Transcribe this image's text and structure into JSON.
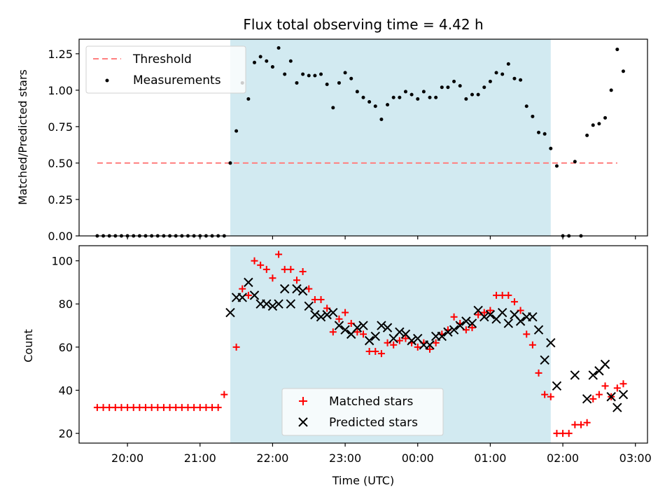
{
  "figure": {
    "title": "Flux total observing time = 4.42 h"
  },
  "colors": {
    "shade": "#add8e6",
    "threshold": "#ff7f7f",
    "measure": "#000000",
    "matched": "#ff0000",
    "predicted": "#000000"
  },
  "chart_data": [
    {
      "type": "scatter",
      "ylabel": "Matched/Predicted stars",
      "ylim": [
        0,
        1.35
      ],
      "yticks": [
        "0.00",
        "0.25",
        "0.50",
        "0.75",
        "1.00",
        "1.25"
      ],
      "xlim": [
        "19:20",
        "03:10"
      ],
      "grid": false,
      "legend": {
        "position": "upper-left",
        "entries": [
          "Threshold",
          "Measurements"
        ]
      },
      "shaded_interval": [
        "21:25",
        "01:50"
      ],
      "threshold": {
        "name": "Threshold",
        "value": 0.5,
        "x": [
          "19:35",
          "02:45"
        ]
      },
      "series": [
        {
          "name": "Measurements",
          "points": [
            [
              "19:35",
              0
            ],
            [
              "19:40",
              0
            ],
            [
              "19:45",
              0
            ],
            [
              "19:50",
              0
            ],
            [
              "19:55",
              0
            ],
            [
              "20:00",
              0
            ],
            [
              "20:05",
              0
            ],
            [
              "20:10",
              0
            ],
            [
              "20:15",
              0
            ],
            [
              "20:20",
              0
            ],
            [
              "20:25",
              0
            ],
            [
              "20:30",
              0
            ],
            [
              "20:35",
              0
            ],
            [
              "20:40",
              0
            ],
            [
              "20:45",
              0
            ],
            [
              "20:50",
              0
            ],
            [
              "20:55",
              0
            ],
            [
              "21:00",
              0
            ],
            [
              "21:05",
              0
            ],
            [
              "21:10",
              0
            ],
            [
              "21:15",
              0
            ],
            [
              "21:20",
              0
            ],
            [
              "21:25",
              0.5
            ],
            [
              "21:30",
              0.72
            ],
            [
              "21:35",
              1.05
            ],
            [
              "21:40",
              0.94
            ],
            [
              "21:45",
              1.19
            ],
            [
              "21:50",
              1.23
            ],
            [
              "21:55",
              1.2
            ],
            [
              "22:00",
              1.16
            ],
            [
              "22:05",
              1.29
            ],
            [
              "22:10",
              1.11
            ],
            [
              "22:15",
              1.2
            ],
            [
              "22:20",
              1.05
            ],
            [
              "22:25",
              1.11
            ],
            [
              "22:30",
              1.1
            ],
            [
              "22:35",
              1.1
            ],
            [
              "22:40",
              1.11
            ],
            [
              "22:45",
              1.04
            ],
            [
              "22:50",
              0.88
            ],
            [
              "22:55",
              1.05
            ],
            [
              "23:00",
              1.12
            ],
            [
              "23:05",
              1.08
            ],
            [
              "23:10",
              0.99
            ],
            [
              "23:15",
              0.95
            ],
            [
              "23:20",
              0.92
            ],
            [
              "23:25",
              0.89
            ],
            [
              "23:30",
              0.8
            ],
            [
              "23:35",
              0.9
            ],
            [
              "23:40",
              0.95
            ],
            [
              "23:45",
              0.95
            ],
            [
              "23:50",
              0.99
            ],
            [
              "23:55",
              0.97
            ],
            [
              "00:00",
              0.94
            ],
            [
              "00:05",
              0.99
            ],
            [
              "00:10",
              0.95
            ],
            [
              "00:15",
              0.95
            ],
            [
              "00:20",
              1.02
            ],
            [
              "00:25",
              1.02
            ],
            [
              "00:30",
              1.06
            ],
            [
              "00:35",
              1.03
            ],
            [
              "00:40",
              0.94
            ],
            [
              "00:45",
              0.97
            ],
            [
              "00:50",
              0.97
            ],
            [
              "00:55",
              1.02
            ],
            [
              "01:00",
              1.06
            ],
            [
              "01:05",
              1.12
            ],
            [
              "01:10",
              1.11
            ],
            [
              "01:15",
              1.18
            ],
            [
              "01:20",
              1.08
            ],
            [
              "01:25",
              1.07
            ],
            [
              "01:30",
              0.89
            ],
            [
              "01:35",
              0.82
            ],
            [
              "01:40",
              0.71
            ],
            [
              "01:45",
              0.7
            ],
            [
              "01:50",
              0.6
            ],
            [
              "01:55",
              0.48
            ],
            [
              "02:00",
              0
            ],
            [
              "02:05",
              0
            ],
            [
              "02:10",
              0.51
            ],
            [
              "02:15",
              0
            ],
            [
              "02:20",
              0.69
            ],
            [
              "02:25",
              0.76
            ],
            [
              "02:30",
              0.77
            ],
            [
              "02:35",
              0.81
            ],
            [
              "02:40",
              1.0
            ],
            [
              "02:45",
              1.28
            ],
            [
              "02:50",
              1.13
            ]
          ]
        }
      ]
    },
    {
      "type": "scatter",
      "xlabel": "Time (UTC)",
      "ylabel": "Count",
      "ylim": [
        15.5,
        107
      ],
      "yticks": [
        "20",
        "40",
        "60",
        "80",
        "100"
      ],
      "xlim": [
        "19:20",
        "03:10"
      ],
      "xticks": [
        "20:00",
        "21:00",
        "22:00",
        "23:00",
        "00:00",
        "01:00",
        "02:00",
        "03:00"
      ],
      "grid": false,
      "legend": {
        "position": "lower-center",
        "entries": [
          "Matched stars",
          "Predicted stars"
        ]
      },
      "shaded_interval": [
        "21:25",
        "01:50"
      ],
      "series": [
        {
          "name": "Matched stars",
          "marker": "plus",
          "points": [
            [
              "19:35",
              32
            ],
            [
              "19:40",
              32
            ],
            [
              "19:45",
              32
            ],
            [
              "19:50",
              32
            ],
            [
              "19:55",
              32
            ],
            [
              "20:00",
              32
            ],
            [
              "20:05",
              32
            ],
            [
              "20:10",
              32
            ],
            [
              "20:15",
              32
            ],
            [
              "20:20",
              32
            ],
            [
              "20:25",
              32
            ],
            [
              "20:30",
              32
            ],
            [
              "20:35",
              32
            ],
            [
              "20:40",
              32
            ],
            [
              "20:45",
              32
            ],
            [
              "20:50",
              32
            ],
            [
              "20:55",
              32
            ],
            [
              "21:00",
              32
            ],
            [
              "21:05",
              32
            ],
            [
              "21:10",
              32
            ],
            [
              "21:15",
              32
            ],
            [
              "21:20",
              38
            ],
            [
              "21:30",
              60
            ],
            [
              "21:35",
              87
            ],
            [
              "21:40",
              84
            ],
            [
              "21:45",
              100
            ],
            [
              "21:50",
              98
            ],
            [
              "21:55",
              96
            ],
            [
              "22:00",
              92
            ],
            [
              "22:05",
              103
            ],
            [
              "22:10",
              96
            ],
            [
              "22:15",
              96
            ],
            [
              "22:20",
              91
            ],
            [
              "22:25",
              95
            ],
            [
              "22:30",
              87
            ],
            [
              "22:35",
              82
            ],
            [
              "22:40",
              82
            ],
            [
              "22:45",
              78
            ],
            [
              "22:50",
              67
            ],
            [
              "22:55",
              73
            ],
            [
              "23:00",
              76
            ],
            [
              "23:05",
              71
            ],
            [
              "23:10",
              67
            ],
            [
              "23:15",
              66
            ],
            [
              "23:20",
              58
            ],
            [
              "23:25",
              58
            ],
            [
              "23:30",
              57
            ],
            [
              "23:35",
              62
            ],
            [
              "23:40",
              61
            ],
            [
              "23:45",
              63
            ],
            [
              "23:50",
              64
            ],
            [
              "23:55",
              62
            ],
            [
              "00:00",
              60
            ],
            [
              "00:05",
              62
            ],
            [
              "00:10",
              59
            ],
            [
              "00:15",
              62
            ],
            [
              "00:20",
              66
            ],
            [
              "00:25",
              68
            ],
            [
              "00:30",
              74
            ],
            [
              "00:35",
              71
            ],
            [
              "00:40",
              68
            ],
            [
              "00:45",
              69
            ],
            [
              "00:50",
              75
            ],
            [
              "00:55",
              76
            ],
            [
              "01:00",
              77
            ],
            [
              "01:05",
              84
            ],
            [
              "01:10",
              84
            ],
            [
              "01:15",
              84
            ],
            [
              "01:20",
              81
            ],
            [
              "01:25",
              77
            ],
            [
              "01:30",
              66
            ],
            [
              "01:35",
              61
            ],
            [
              "01:40",
              48
            ],
            [
              "01:45",
              38
            ],
            [
              "01:50",
              37
            ],
            [
              "01:55",
              20
            ],
            [
              "02:00",
              20
            ],
            [
              "02:05",
              20
            ],
            [
              "02:10",
              24
            ],
            [
              "02:15",
              24
            ],
            [
              "02:20",
              25
            ],
            [
              "02:25",
              36
            ],
            [
              "02:30",
              38
            ],
            [
              "02:35",
              42
            ],
            [
              "02:40",
              37
            ],
            [
              "02:45",
              41
            ],
            [
              "02:50",
              43
            ]
          ]
        },
        {
          "name": "Predicted stars",
          "marker": "x",
          "points": [
            [
              "21:25",
              76
            ],
            [
              "21:30",
              83
            ],
            [
              "21:35",
              83
            ],
            [
              "21:40",
              90
            ],
            [
              "21:45",
              84
            ],
            [
              "21:50",
              80
            ],
            [
              "21:55",
              80
            ],
            [
              "22:00",
              79
            ],
            [
              "22:05",
              80
            ],
            [
              "22:10",
              87
            ],
            [
              "22:15",
              80
            ],
            [
              "22:20",
              87
            ],
            [
              "22:25",
              86
            ],
            [
              "22:30",
              79
            ],
            [
              "22:35",
              75
            ],
            [
              "22:40",
              74
            ],
            [
              "22:45",
              75
            ],
            [
              "22:50",
              76
            ],
            [
              "22:55",
              70
            ],
            [
              "23:00",
              68
            ],
            [
              "23:05",
              66
            ],
            [
              "23:10",
              69
            ],
            [
              "23:15",
              70
            ],
            [
              "23:20",
              63
            ],
            [
              "23:25",
              65
            ],
            [
              "23:30",
              70
            ],
            [
              "23:35",
              69
            ],
            [
              "23:40",
              64
            ],
            [
              "23:45",
              67
            ],
            [
              "23:50",
              66
            ],
            [
              "23:55",
              63
            ],
            [
              "00:00",
              64
            ],
            [
              "00:05",
              61
            ],
            [
              "00:10",
              61
            ],
            [
              "00:15",
              65
            ],
            [
              "00:20",
              65
            ],
            [
              "00:25",
              67
            ],
            [
              "00:30",
              68
            ],
            [
              "00:35",
              70
            ],
            [
              "00:40",
              72
            ],
            [
              "00:45",
              71
            ],
            [
              "00:50",
              77
            ],
            [
              "00:55",
              74
            ],
            [
              "01:00",
              75
            ],
            [
              "01:05",
              73
            ],
            [
              "01:10",
              76
            ],
            [
              "01:15",
              71
            ],
            [
              "01:20",
              75
            ],
            [
              "01:25",
              72
            ],
            [
              "01:30",
              74
            ],
            [
              "01:35",
              74
            ],
            [
              "01:40",
              68
            ],
            [
              "01:45",
              54
            ],
            [
              "01:50",
              62
            ],
            [
              "01:55",
              42
            ],
            [
              "02:10",
              47
            ],
            [
              "02:20",
              36
            ],
            [
              "02:25",
              47
            ],
            [
              "02:30",
              49
            ],
            [
              "02:35",
              52
            ],
            [
              "02:40",
              37
            ],
            [
              "02:45",
              32
            ],
            [
              "02:50",
              38
            ]
          ]
        }
      ]
    }
  ]
}
